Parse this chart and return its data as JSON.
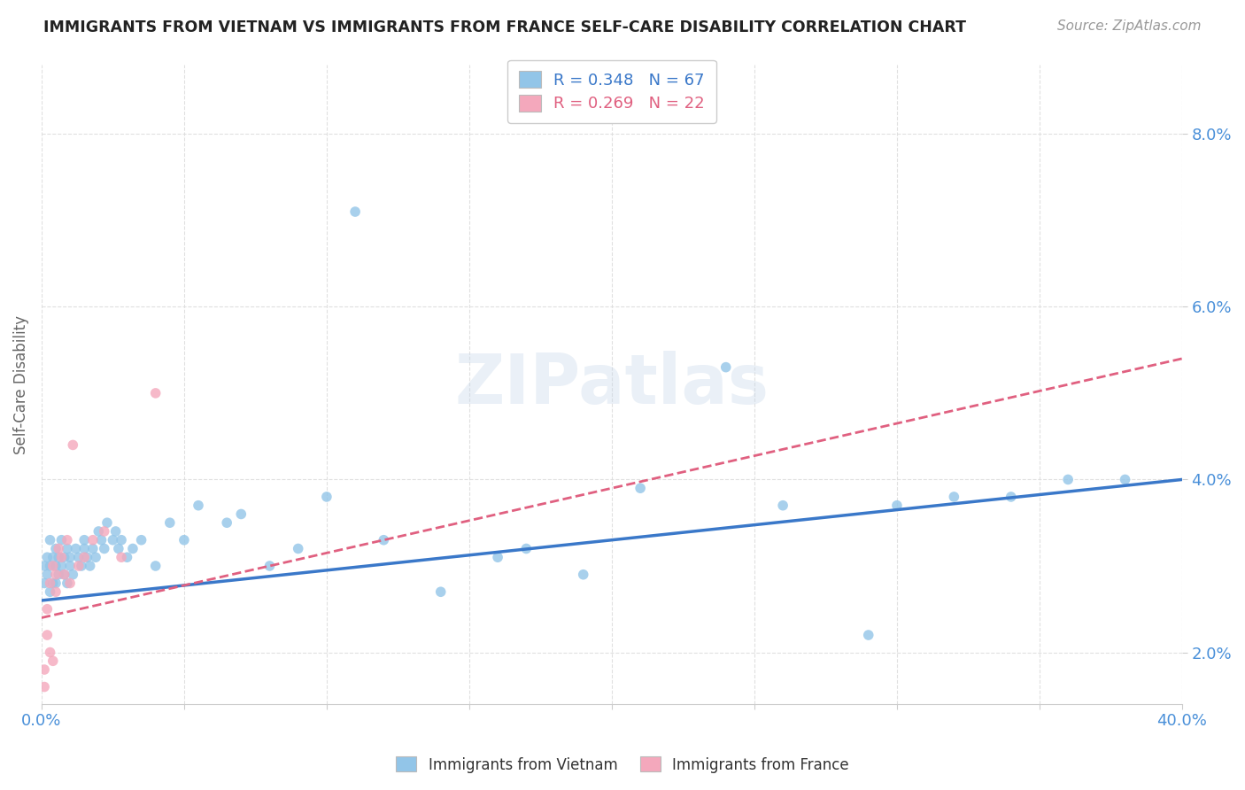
{
  "title": "IMMIGRANTS FROM VIETNAM VS IMMIGRANTS FROM FRANCE SELF-CARE DISABILITY CORRELATION CHART",
  "source": "Source: ZipAtlas.com",
  "ylabel": "Self-Care Disability",
  "xlim": [
    0.0,
    0.4
  ],
  "ylim": [
    0.014,
    0.088
  ],
  "xticks": [
    0.0,
    0.05,
    0.1,
    0.15,
    0.2,
    0.25,
    0.3,
    0.35,
    0.4
  ],
  "yticks": [
    0.02,
    0.04,
    0.06,
    0.08
  ],
  "ytick_labels": [
    "2.0%",
    "4.0%",
    "6.0%",
    "8.0%"
  ],
  "xtick_labels_show": [
    "0.0%",
    "40.0%"
  ],
  "legend_r1": "R = 0.348   N = 67",
  "legend_r2": "R = 0.269   N = 22",
  "color_vietnam": "#92C5E8",
  "color_france": "#F4A8BC",
  "color_vietnam_line": "#3A78C9",
  "color_france_line": "#E06080",
  "vietnam_x": [
    0.001,
    0.001,
    0.002,
    0.002,
    0.003,
    0.003,
    0.003,
    0.004,
    0.004,
    0.005,
    0.005,
    0.005,
    0.006,
    0.006,
    0.007,
    0.007,
    0.008,
    0.008,
    0.009,
    0.009,
    0.01,
    0.01,
    0.011,
    0.012,
    0.013,
    0.014,
    0.015,
    0.015,
    0.016,
    0.017,
    0.018,
    0.019,
    0.02,
    0.021,
    0.022,
    0.023,
    0.025,
    0.026,
    0.027,
    0.028,
    0.03,
    0.032,
    0.035,
    0.04,
    0.045,
    0.05,
    0.055,
    0.065,
    0.07,
    0.08,
    0.09,
    0.1,
    0.12,
    0.14,
    0.16,
    0.19,
    0.21,
    0.24,
    0.26,
    0.3,
    0.32,
    0.34,
    0.36,
    0.38,
    0.11,
    0.17,
    0.29
  ],
  "vietnam_y": [
    0.03,
    0.028,
    0.031,
    0.029,
    0.033,
    0.03,
    0.027,
    0.031,
    0.028,
    0.032,
    0.03,
    0.028,
    0.031,
    0.029,
    0.033,
    0.03,
    0.031,
    0.029,
    0.032,
    0.028,
    0.03,
    0.031,
    0.029,
    0.032,
    0.031,
    0.03,
    0.033,
    0.032,
    0.031,
    0.03,
    0.032,
    0.031,
    0.034,
    0.033,
    0.032,
    0.035,
    0.033,
    0.034,
    0.032,
    0.033,
    0.031,
    0.032,
    0.033,
    0.03,
    0.035,
    0.033,
    0.037,
    0.035,
    0.036,
    0.03,
    0.032,
    0.038,
    0.033,
    0.027,
    0.031,
    0.029,
    0.039,
    0.053,
    0.037,
    0.037,
    0.038,
    0.038,
    0.04,
    0.04,
    0.071,
    0.032,
    0.022
  ],
  "france_x": [
    0.001,
    0.001,
    0.002,
    0.002,
    0.003,
    0.003,
    0.004,
    0.004,
    0.005,
    0.005,
    0.006,
    0.007,
    0.008,
    0.009,
    0.01,
    0.011,
    0.013,
    0.015,
    0.018,
    0.022,
    0.028,
    0.04
  ],
  "france_y": [
    0.018,
    0.016,
    0.022,
    0.025,
    0.02,
    0.028,
    0.03,
    0.019,
    0.029,
    0.027,
    0.032,
    0.031,
    0.029,
    0.033,
    0.028,
    0.044,
    0.03,
    0.031,
    0.033,
    0.034,
    0.031,
    0.05
  ],
  "vietnam_line_x0": 0.0,
  "vietnam_line_y0": 0.026,
  "vietnam_line_x1": 0.4,
  "vietnam_line_y1": 0.04,
  "france_line_x0": 0.0,
  "france_line_y0": 0.024,
  "france_line_x1": 0.4,
  "france_line_y1": 0.054
}
